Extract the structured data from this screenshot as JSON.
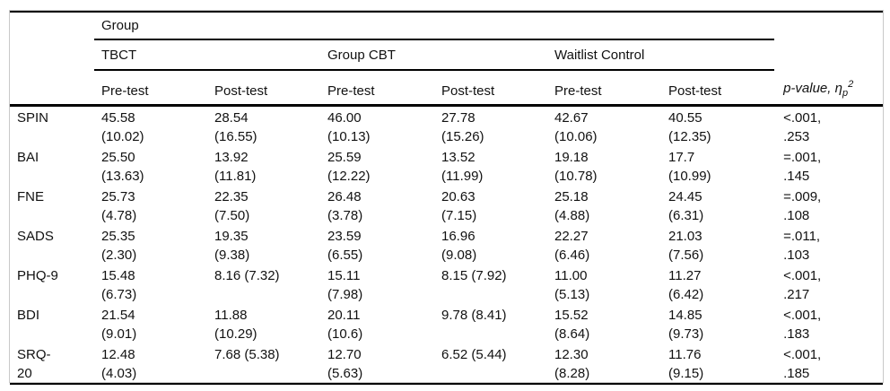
{
  "table": {
    "top_group_header": "Group",
    "group_headers": [
      "TBCT",
      "Group CBT",
      "Waitlist Control"
    ],
    "sub_headers": [
      "Pre-test",
      "Post-test",
      "Pre-test",
      "Post-test",
      "Pre-test",
      "Post-test"
    ],
    "pvalue_header": {
      "main": "p-value, η",
      "sub": "p",
      "sup": "2"
    },
    "rows": [
      {
        "label": "SPIN",
        "cells": [
          "45.58\n(10.02)",
          "28.54\n(16.55)",
          "46.00\n(10.13)",
          "27.78\n(15.26)",
          "42.67\n(10.06)",
          "40.55\n(12.35)"
        ],
        "stat": "<.001,\n.253"
      },
      {
        "label": "BAI",
        "cells": [
          "25.50\n(13.63)",
          "13.92\n(11.81)",
          "25.59\n(12.22)",
          "13.52\n(11.99)",
          "19.18\n(10.78)",
          "17.7\n(10.99)"
        ],
        "stat": "=.001,\n.145"
      },
      {
        "label": "FNE",
        "cells": [
          "25.73\n(4.78)",
          "22.35\n(7.50)",
          "26.48\n(3.78)",
          "20.63\n(7.15)",
          "25.18\n(4.88)",
          "24.45\n(6.31)"
        ],
        "stat": "=.009,\n.108"
      },
      {
        "label": "SADS",
        "cells": [
          "25.35\n(2.30)",
          "19.35\n(9.38)",
          "23.59\n(6.55)",
          "16.96\n(9.08)",
          "22.27\n(6.46)",
          "21.03\n(7.56)"
        ],
        "stat": "=.011,\n.103"
      },
      {
        "label": "PHQ-9",
        "cells": [
          "15.48\n(6.73)",
          "8.16 (7.32)",
          "15.11\n(7.98)",
          "8.15 (7.92)",
          "11.00\n(5.13)",
          "11.27\n(6.42)"
        ],
        "stat": "<.001,\n.217"
      },
      {
        "label": "BDI",
        "cells": [
          "21.54\n(9.01)",
          "11.88\n(10.29)",
          "20.11\n(10.6)",
          "9.78 (8.41)",
          "15.52\n(8.64)",
          "14.85\n(9.73)"
        ],
        "stat": "<.001,\n.183"
      },
      {
        "label": "SRQ-\n20",
        "cells": [
          "12.48\n(4.03)",
          "7.68 (5.38)",
          "12.70\n(5.63)",
          "6.52 (5.44)",
          "12.30\n(8.28)",
          "11.76\n(9.15)"
        ],
        "stat": "<.001,\n.185"
      }
    ]
  },
  "colors": {
    "rule": "#000000",
    "frame_border": "#c9c9c9",
    "text": "#111111",
    "background": "#ffffff"
  }
}
